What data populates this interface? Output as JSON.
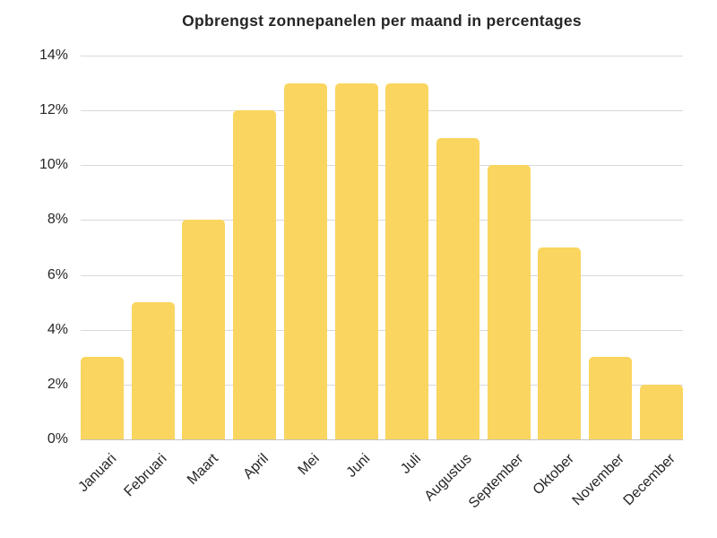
{
  "chart_data": {
    "type": "bar",
    "title": "Opbrengst zonnepanelen per maand in percentages",
    "categories": [
      "Januari",
      "Februari",
      "Maart",
      "April",
      "Mei",
      "Juni",
      "Juli",
      "Augustus",
      "September",
      "Oktober",
      "November",
      "December"
    ],
    "values": [
      3,
      5,
      8,
      12,
      13,
      13,
      13,
      11,
      10,
      7,
      3,
      2
    ],
    "unit": "%",
    "xlabel": "",
    "ylabel": "",
    "ylim": [
      0,
      14
    ],
    "ytick_values": [
      0,
      2,
      4,
      6,
      8,
      10,
      12,
      14
    ],
    "ytick_labels": [
      "0%",
      "2%",
      "4%",
      "6%",
      "8%",
      "10%",
      "12%",
      "14%"
    ],
    "grid": true,
    "legend": false,
    "colors": {
      "bar_fill": "#FAD55F",
      "gridline": "#D9D9D9",
      "axis_line": "#C4C4C4",
      "text": "#262626",
      "background": "#FFFFFF"
    }
  }
}
